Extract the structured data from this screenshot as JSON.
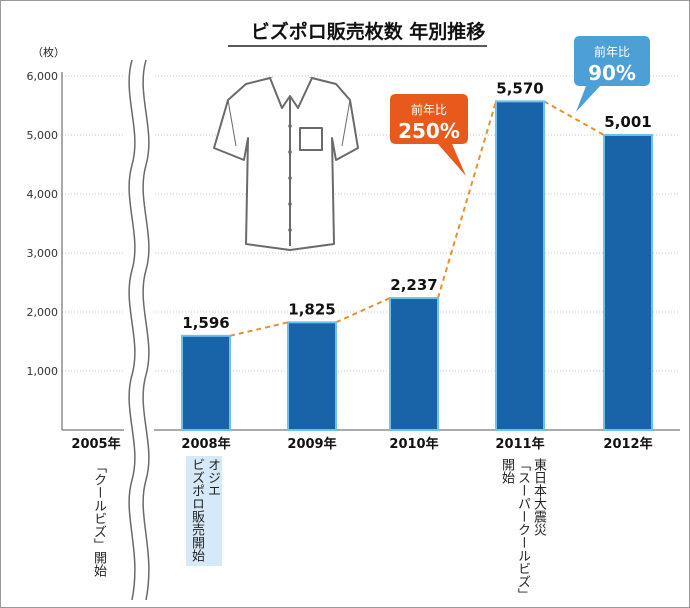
{
  "chart_data": {
    "type": "bar",
    "title": "ビズポロ販売枚数 年別推移",
    "ylabel": "（枚）",
    "ylim": [
      0,
      6000
    ],
    "yticks": [
      "1,000",
      "2,000",
      "3,000",
      "4,000",
      "5,000",
      "6,000"
    ],
    "yticks_values": [
      1000,
      2000,
      3000,
      4000,
      5000,
      6000
    ],
    "categories": [
      "2005年",
      "2008年",
      "2009年",
      "2010年",
      "2011年",
      "2012年"
    ],
    "values": [
      null,
      1596,
      1825,
      2237,
      5570,
      5001
    ],
    "value_labels": [
      "",
      "1,596",
      "1,825",
      "2,237",
      "5,570",
      "5,001"
    ],
    "grid": true,
    "trend_line": "dashed",
    "axis_break_after": "2005年",
    "colors": {
      "bar": "#1964a8",
      "bar_edge": "#6cc3ea",
      "trend": "#e8902e",
      "callout_orange": "#e85a1b",
      "callout_blue": "#4da0d6"
    },
    "callouts": [
      {
        "label": "前年比",
        "value": "250%",
        "color": "orange",
        "near": "2011年"
      },
      {
        "label": "前年比",
        "value": "90%",
        "color": "blue",
        "near": "2012年"
      }
    ],
    "notes": [
      {
        "category": "2005年",
        "text": "「クールビズ」開始"
      },
      {
        "category": "2008年",
        "lines": [
          "オジエ",
          "ビズポロ販売開始"
        ]
      },
      {
        "category": "2011年",
        "lines": [
          "東日本大震災",
          "「スーパークールビズ」",
          "開始"
        ]
      }
    ],
    "illustration": "shirt-icon"
  }
}
